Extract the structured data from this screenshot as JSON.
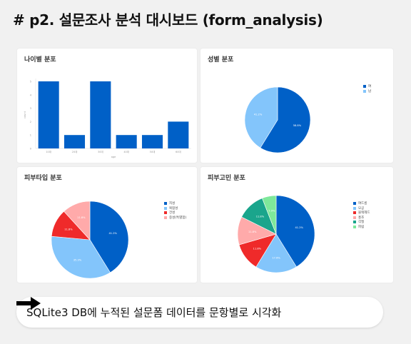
{
  "header": {
    "title": "# p2. 설문조사 분석 대시보드 (form_analysis)"
  },
  "footer": {
    "caption": "SQLite3 DB에 누적된 설문폼 데이터를 문항별로 시각화",
    "arrow_icon": "right-arrow-icon"
  },
  "colors": {
    "dark_blue": "#0060c7",
    "light_blue": "#83c5fb",
    "red": "#ef2a2a",
    "pink": "#ffaaaa",
    "teal": "#1aa58c",
    "green": "#7ee89a"
  },
  "chart_data": [
    {
      "id": "age",
      "type": "bar",
      "title": "나이별 분포",
      "xlabel": "age",
      "ylabel": "count",
      "categories": [
        "10대",
        "20대",
        "30대",
        "40대",
        "50대",
        "60대"
      ],
      "values": [
        5,
        1,
        5,
        1,
        1,
        2
      ],
      "ylim": [
        0,
        5
      ],
      "yticks": [
        "0",
        "1",
        "2",
        "3",
        "4",
        "5"
      ],
      "color": "#0060c7"
    },
    {
      "id": "gender",
      "type": "pie",
      "title": "성별 분포",
      "slices": [
        {
          "label": "여",
          "value": 58.8,
          "pct_label": "58.8%",
          "color": "#0060c7"
        },
        {
          "label": "남",
          "value": 41.2,
          "pct_label": "41.2%",
          "color": "#83c5fb"
        }
      ],
      "legend_position": "top-right"
    },
    {
      "id": "skin",
      "type": "pie",
      "title": "피부타입 분포",
      "slices": [
        {
          "label": "지성",
          "value": 41.2,
          "pct_label": "41.2%",
          "color": "#0060c7"
        },
        {
          "label": "복합성",
          "value": 35.3,
          "pct_label": "35.3%",
          "color": "#83c5fb"
        },
        {
          "label": "건성",
          "value": 11.8,
          "pct_label": "11.8%",
          "color": "#ef2a2a"
        },
        {
          "label": "중성(특별함)",
          "value": 11.8,
          "pct_label": "11.8%",
          "color": "#ffaaaa"
        }
      ],
      "legend_position": "top-right"
    },
    {
      "id": "concern",
      "type": "pie",
      "title": "피부고민 분포",
      "slices": [
        {
          "label": "여드름",
          "value": 41.2,
          "pct_label": "41.2%",
          "color": "#0060c7"
        },
        {
          "label": "모공",
          "value": 17.6,
          "pct_label": "17.6%",
          "color": "#83c5fb"
        },
        {
          "label": "블랙헤드",
          "value": 11.8,
          "pct_label": "11.8%",
          "color": "#ef2a2a"
        },
        {
          "label": "홍조",
          "value": 11.8,
          "pct_label": "11.8%",
          "color": "#ffaaaa"
        },
        {
          "label": "각질",
          "value": 11.8,
          "pct_label": "11.8%",
          "color": "#1aa58c"
        },
        {
          "label": "피림",
          "value": 5.9,
          "pct_label": "5.9%",
          "color": "#7ee89a"
        }
      ],
      "legend_position": "top-right"
    }
  ]
}
